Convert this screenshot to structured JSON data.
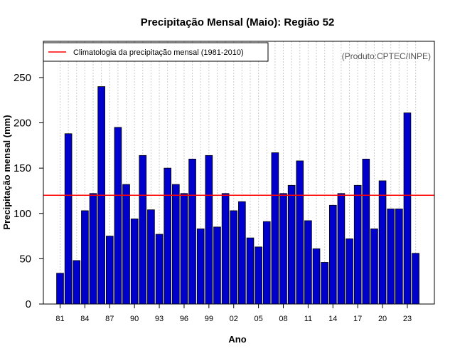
{
  "chart_data": {
    "type": "bar",
    "title": "Precipitação Mensal (Maio): Região 52",
    "xlabel": "Ano",
    "ylabel": "Precipitação mensal (mm)",
    "ylim": [
      0,
      290
    ],
    "yticks": [
      0,
      50,
      100,
      150,
      200,
      250
    ],
    "years": [
      1981,
      1982,
      1983,
      1984,
      1985,
      1986,
      1987,
      1988,
      1989,
      1990,
      1991,
      1992,
      1993,
      1994,
      1995,
      1996,
      1997,
      1998,
      1999,
      2000,
      2001,
      2002,
      2003,
      2004,
      2005,
      2006,
      2007,
      2008,
      2009,
      2010,
      2011,
      2012,
      2013,
      2014,
      2015,
      2016,
      2017,
      2018,
      2019,
      2020,
      2021,
      2022,
      2023,
      2024
    ],
    "xtick_labels": [
      "81",
      "84",
      "87",
      "90",
      "93",
      "96",
      "99",
      "02",
      "05",
      "08",
      "11",
      "14",
      "17",
      "20",
      "23"
    ],
    "xtick_years": [
      1981,
      1984,
      1987,
      1990,
      1993,
      1996,
      1999,
      2002,
      2005,
      2008,
      2011,
      2014,
      2017,
      2020,
      2023
    ],
    "values": [
      34,
      188,
      48,
      103,
      122,
      240,
      75,
      195,
      132,
      94,
      164,
      104,
      77,
      150,
      132,
      122,
      160,
      83,
      164,
      85,
      122,
      103,
      113,
      73,
      63,
      91,
      167,
      122,
      131,
      158,
      92,
      61,
      46,
      109,
      122,
      72,
      131,
      160,
      83,
      136,
      105,
      105,
      211,
      56
    ],
    "climatology": 120,
    "legend": "Climatologia da precipitação mensal (1981-2010)",
    "legend_position": "top-left",
    "credit": "(Produto:CPTEC/INPE)",
    "grid": "vertical-dotted",
    "colors": {
      "bar": "#0000cc",
      "bar_edge": "#000000",
      "climatology": "#ff0000",
      "grid": "#cccccc"
    }
  }
}
